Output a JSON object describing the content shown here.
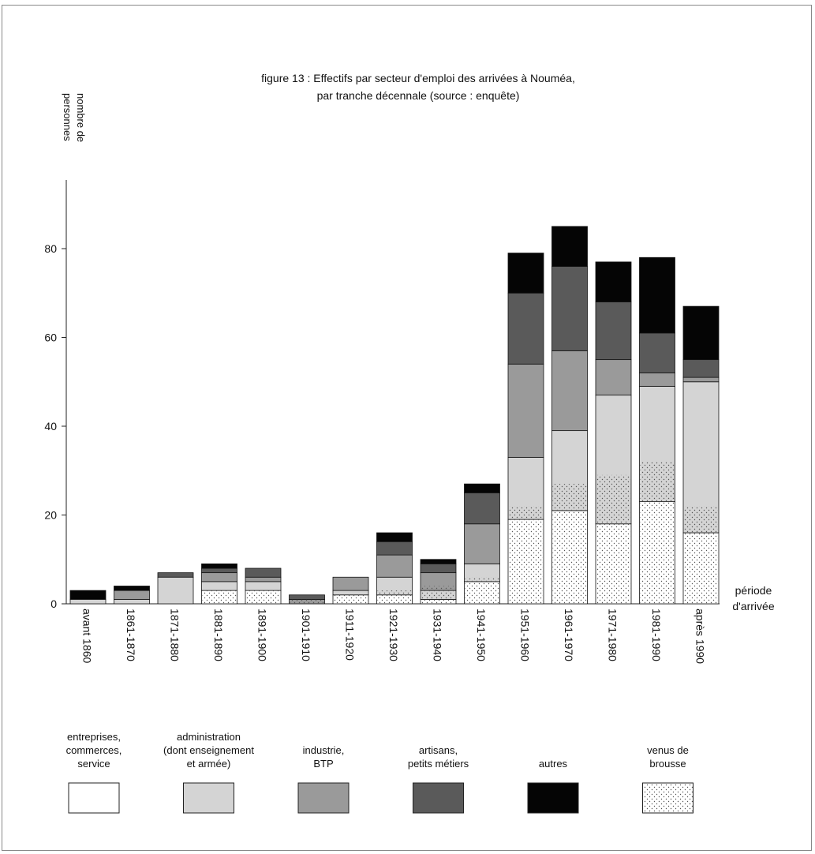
{
  "chart_data": {
    "type": "bar",
    "stacked": true,
    "title": "figure 13 : Effectifs par secteur d'emploi des arrivées à Nouméa,",
    "subtitle": "par tranche décennale (source : enquête)",
    "ylabel_lines": [
      "nombre de",
      "personnes"
    ],
    "xlabel_lines": [
      "période",
      "d'arrivée"
    ],
    "ylim": [
      0,
      95
    ],
    "yticks": [
      0,
      20,
      40,
      60,
      80
    ],
    "yticks_labels": [
      "0",
      "20",
      "40",
      "60",
      "80"
    ],
    "categories": [
      "avant 1860",
      "1861-1870",
      "1871-1880",
      "1881-1890",
      "1891-1900",
      "1901-1910",
      "1911-1920",
      "1921-1930",
      "1931-1940",
      "1941-1950",
      "1951-1960",
      "1961-1970",
      "1971-1980",
      "1981-1990",
      "après 1990"
    ],
    "series": [
      {
        "name": "entreprises, commerces, service",
        "legend_lines": [
          "entreprises,",
          "commerces,",
          "service"
        ],
        "color": "#ffffff",
        "values": [
          0,
          0,
          0,
          3,
          3,
          0,
          2,
          2,
          1,
          5,
          19,
          21,
          18,
          23,
          16
        ]
      },
      {
        "name": "administration (dont enseignement et armée)",
        "legend_lines": [
          "administration",
          "(dont enseignement",
          "et armée)"
        ],
        "color": "#d4d4d4",
        "values": [
          1,
          1,
          6,
          2,
          2,
          0,
          1,
          4,
          2,
          4,
          14,
          18,
          29,
          26,
          34
        ]
      },
      {
        "name": "industrie, BTP",
        "legend_lines": [
          "industrie,",
          "BTP"
        ],
        "color": "#9a9a9a",
        "values": [
          0,
          2,
          0,
          2,
          1,
          1,
          3,
          5,
          4,
          9,
          21,
          18,
          8,
          3,
          1
        ]
      },
      {
        "name": "artisans, petits métiers",
        "legend_lines": [
          "artisans,",
          "petits métiers"
        ],
        "color": "#5a5a5a",
        "values": [
          0,
          0,
          1,
          1,
          2,
          1,
          0,
          3,
          2,
          7,
          16,
          19,
          13,
          9,
          4
        ]
      },
      {
        "name": "autres",
        "legend_lines": [
          "autres"
        ],
        "color": "#050505",
        "values": [
          2,
          1,
          0,
          1,
          0,
          0,
          0,
          2,
          1,
          2,
          9,
          9,
          9,
          17,
          12
        ]
      }
    ],
    "hatched": {
      "name": "venus de brousse",
      "legend_lines": [
        "venus de",
        "brousse"
      ],
      "values": [
        0,
        0,
        0,
        3,
        3,
        1,
        2,
        3,
        4,
        6,
        22,
        27,
        29,
        32,
        22
      ]
    },
    "legend_placement": "bottom",
    "grid": false
  }
}
